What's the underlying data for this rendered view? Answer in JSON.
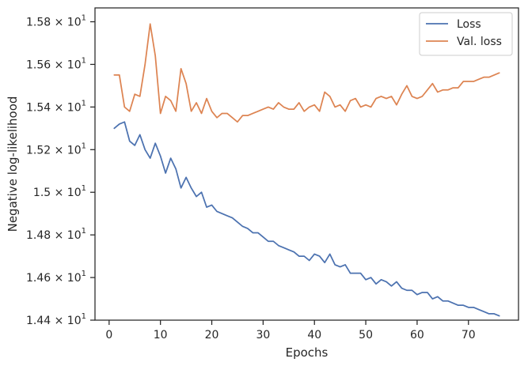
{
  "chart_data": {
    "type": "line",
    "xlabel": "Epochs",
    "ylabel": "Negative log-likelihood",
    "xlim": [
      -2.75,
      79.75
    ],
    "ylim": [
      14.4,
      15.865
    ],
    "x_ticks": [
      0,
      10,
      20,
      30,
      40,
      50,
      60,
      70
    ],
    "y_ticks": [
      {
        "value": 14.4,
        "mantissa": "1.44"
      },
      {
        "value": 14.6,
        "mantissa": "1.46"
      },
      {
        "value": 14.8,
        "mantissa": "1.48"
      },
      {
        "value": 15.0,
        "mantissa": "1.5"
      },
      {
        "value": 15.2,
        "mantissa": "1.52"
      },
      {
        "value": 15.4,
        "mantissa": "1.54"
      },
      {
        "value": 15.6,
        "mantissa": "1.56"
      },
      {
        "value": 15.8,
        "mantissa": "1.58"
      }
    ],
    "y_tick_multiplier": "× 10",
    "y_tick_exponent": "1",
    "legend_position": "top-right",
    "grid": false,
    "x": [
      1,
      2,
      3,
      4,
      5,
      6,
      7,
      8,
      9,
      10,
      11,
      12,
      13,
      14,
      15,
      16,
      17,
      18,
      19,
      20,
      21,
      22,
      23,
      24,
      25,
      26,
      27,
      28,
      29,
      30,
      31,
      32,
      33,
      34,
      35,
      36,
      37,
      38,
      39,
      40,
      41,
      42,
      43,
      44,
      45,
      46,
      47,
      48,
      49,
      50,
      51,
      52,
      53,
      54,
      55,
      56,
      57,
      58,
      59,
      60,
      61,
      62,
      63,
      64,
      65,
      66,
      67,
      68,
      69,
      70,
      71,
      72,
      73,
      74,
      75,
      76
    ],
    "series": [
      {
        "name": "Loss",
        "color": "#4c72b0",
        "values": [
          15.3,
          15.32,
          15.33,
          15.24,
          15.22,
          15.27,
          15.2,
          15.16,
          15.23,
          15.17,
          15.09,
          15.16,
          15.11,
          15.02,
          15.07,
          15.02,
          14.98,
          15.0,
          14.93,
          14.94,
          14.91,
          14.9,
          14.89,
          14.88,
          14.86,
          14.84,
          14.83,
          14.81,
          14.81,
          14.79,
          14.77,
          14.77,
          14.75,
          14.74,
          14.73,
          14.72,
          14.7,
          14.7,
          14.68,
          14.71,
          14.7,
          14.67,
          14.71,
          14.66,
          14.65,
          14.66,
          14.62,
          14.62,
          14.62,
          14.59,
          14.6,
          14.57,
          14.59,
          14.58,
          14.56,
          14.58,
          14.55,
          14.54,
          14.54,
          14.52,
          14.53,
          14.53,
          14.5,
          14.51,
          14.49,
          14.49,
          14.48,
          14.47,
          14.47,
          14.46,
          14.46,
          14.45,
          14.44,
          14.43,
          14.43,
          14.42
        ]
      },
      {
        "name": "Val. loss",
        "color": "#dd8452",
        "values": [
          15.55,
          15.55,
          15.4,
          15.38,
          15.46,
          15.45,
          15.6,
          15.79,
          15.64,
          15.37,
          15.45,
          15.43,
          15.38,
          15.58,
          15.51,
          15.38,
          15.42,
          15.37,
          15.44,
          15.38,
          15.35,
          15.37,
          15.37,
          15.35,
          15.33,
          15.36,
          15.36,
          15.37,
          15.38,
          15.39,
          15.4,
          15.39,
          15.42,
          15.4,
          15.39,
          15.39,
          15.42,
          15.38,
          15.4,
          15.41,
          15.38,
          15.47,
          15.45,
          15.4,
          15.41,
          15.38,
          15.43,
          15.44,
          15.4,
          15.41,
          15.4,
          15.44,
          15.45,
          15.44,
          15.45,
          15.41,
          15.46,
          15.5,
          15.45,
          15.44,
          15.45,
          15.48,
          15.51,
          15.47,
          15.48,
          15.48,
          15.49,
          15.49,
          15.52,
          15.52,
          15.52,
          15.53,
          15.54,
          15.54,
          15.55,
          15.56
        ]
      }
    ]
  }
}
